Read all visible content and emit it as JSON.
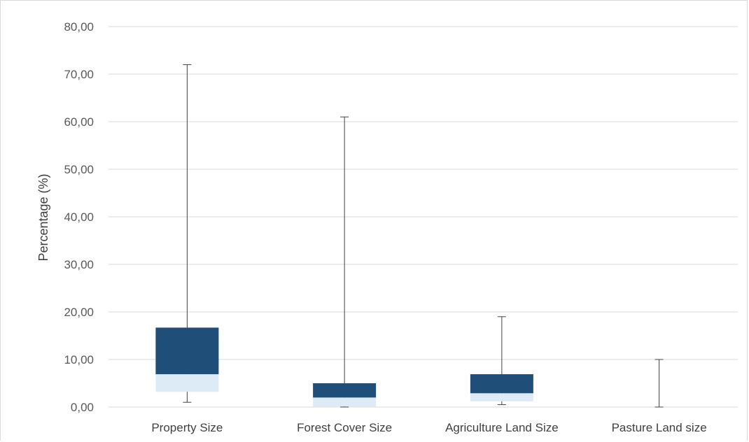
{
  "chart_data": {
    "type": "box",
    "ylabel": "Percentage (%)",
    "ylim": [
      0,
      80
    ],
    "yticks": [
      "0,00",
      "10,00",
      "20,00",
      "30,00",
      "40,00",
      "50,00",
      "60,00",
      "70,00",
      "80,00"
    ],
    "grid": true,
    "categories": [
      "Property Size",
      "Forest Cover Size",
      "Agriculture Land Size",
      "Pasture Land size"
    ],
    "boxes": [
      {
        "min": 1.0,
        "q1": 3.2,
        "median": 6.9,
        "q3": 16.7,
        "max": 72.0
      },
      {
        "min": 0.0,
        "q1": 0.1,
        "median": 2.0,
        "q3": 5.0,
        "max": 61.0
      },
      {
        "min": 0.5,
        "q1": 1.2,
        "median": 2.9,
        "q3": 6.9,
        "max": 19.0
      },
      {
        "min": 0.0,
        "q1": 0.0,
        "median": 0.0,
        "q3": 0.0,
        "max": 10.0
      }
    ],
    "colors": {
      "upper_box": "#1f4e79",
      "lower_box": "#ddebf7",
      "whisker": "#404040",
      "grid": "#d9d9d9"
    }
  }
}
